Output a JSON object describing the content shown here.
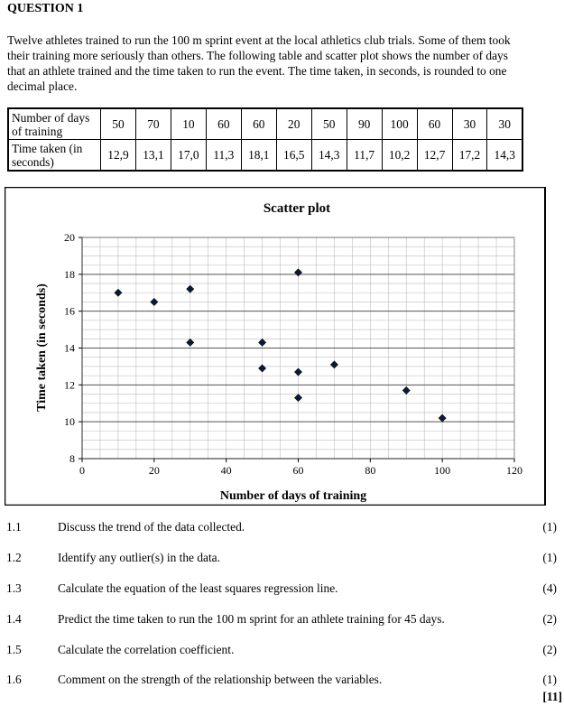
{
  "question": {
    "title": "QUESTION 1",
    "intro": "Twelve athletes trained to run the 100 m sprint event at the local athletics club trials. Some of them took their training more seriously than others. The following table and scatter plot shows the number of days that an athlete trained and the time taken to run the event. The time taken, in seconds, is rounded to one decimal place."
  },
  "table": {
    "row1_header": "Number of days of training",
    "row2_header": "Time taken (in seconds)",
    "days": [
      "50",
      "70",
      "10",
      "60",
      "60",
      "20",
      "50",
      "90",
      "100",
      "60",
      "30",
      "30"
    ],
    "times": [
      "12,9",
      "13,1",
      "17,0",
      "11,3",
      "18,1",
      "16,5",
      "14,3",
      "11,7",
      "10,2",
      "12,7",
      "17,2",
      "14,3"
    ]
  },
  "chart_data": {
    "type": "scatter",
    "title": "Scatter plot",
    "xlabel": "Number of days of training",
    "ylabel": "Time taken (in seconds)",
    "xlim": [
      0,
      120
    ],
    "ylim": [
      8,
      20
    ],
    "x_ticks": [
      0,
      20,
      40,
      60,
      80,
      100,
      120
    ],
    "y_ticks": [
      8,
      10,
      12,
      14,
      16,
      18,
      20
    ],
    "grid": true,
    "points": [
      {
        "x": 50,
        "y": 12.9
      },
      {
        "x": 70,
        "y": 13.1
      },
      {
        "x": 10,
        "y": 17.0
      },
      {
        "x": 60,
        "y": 11.3
      },
      {
        "x": 60,
        "y": 18.1
      },
      {
        "x": 20,
        "y": 16.5
      },
      {
        "x": 50,
        "y": 14.3
      },
      {
        "x": 90,
        "y": 11.7
      },
      {
        "x": 100,
        "y": 10.2
      },
      {
        "x": 60,
        "y": 12.7
      },
      {
        "x": 30,
        "y": 17.2
      },
      {
        "x": 30,
        "y": 14.3
      }
    ],
    "marker_color": "#0a1a3a"
  },
  "sub_questions": [
    {
      "num": "1.1",
      "text": "Discuss the trend of the data collected.",
      "marks": "(1)"
    },
    {
      "num": "1.2",
      "text": "Identify any outlier(s) in the data.",
      "marks": "(1)"
    },
    {
      "num": "1.3",
      "text": "Calculate the equation of the least squares regression line.",
      "marks": "(4)"
    },
    {
      "num": "1.4",
      "text": "Predict the time taken to run the 100 m sprint for an athlete training for 45 days.",
      "marks": "(2)"
    },
    {
      "num": "1.5",
      "text": "Calculate the correlation coefficient.",
      "marks": "(2)"
    },
    {
      "num": "1.6",
      "text": "Comment on the strength of the relationship between the variables.",
      "marks": "(1)"
    }
  ],
  "total_marks": "[11]"
}
